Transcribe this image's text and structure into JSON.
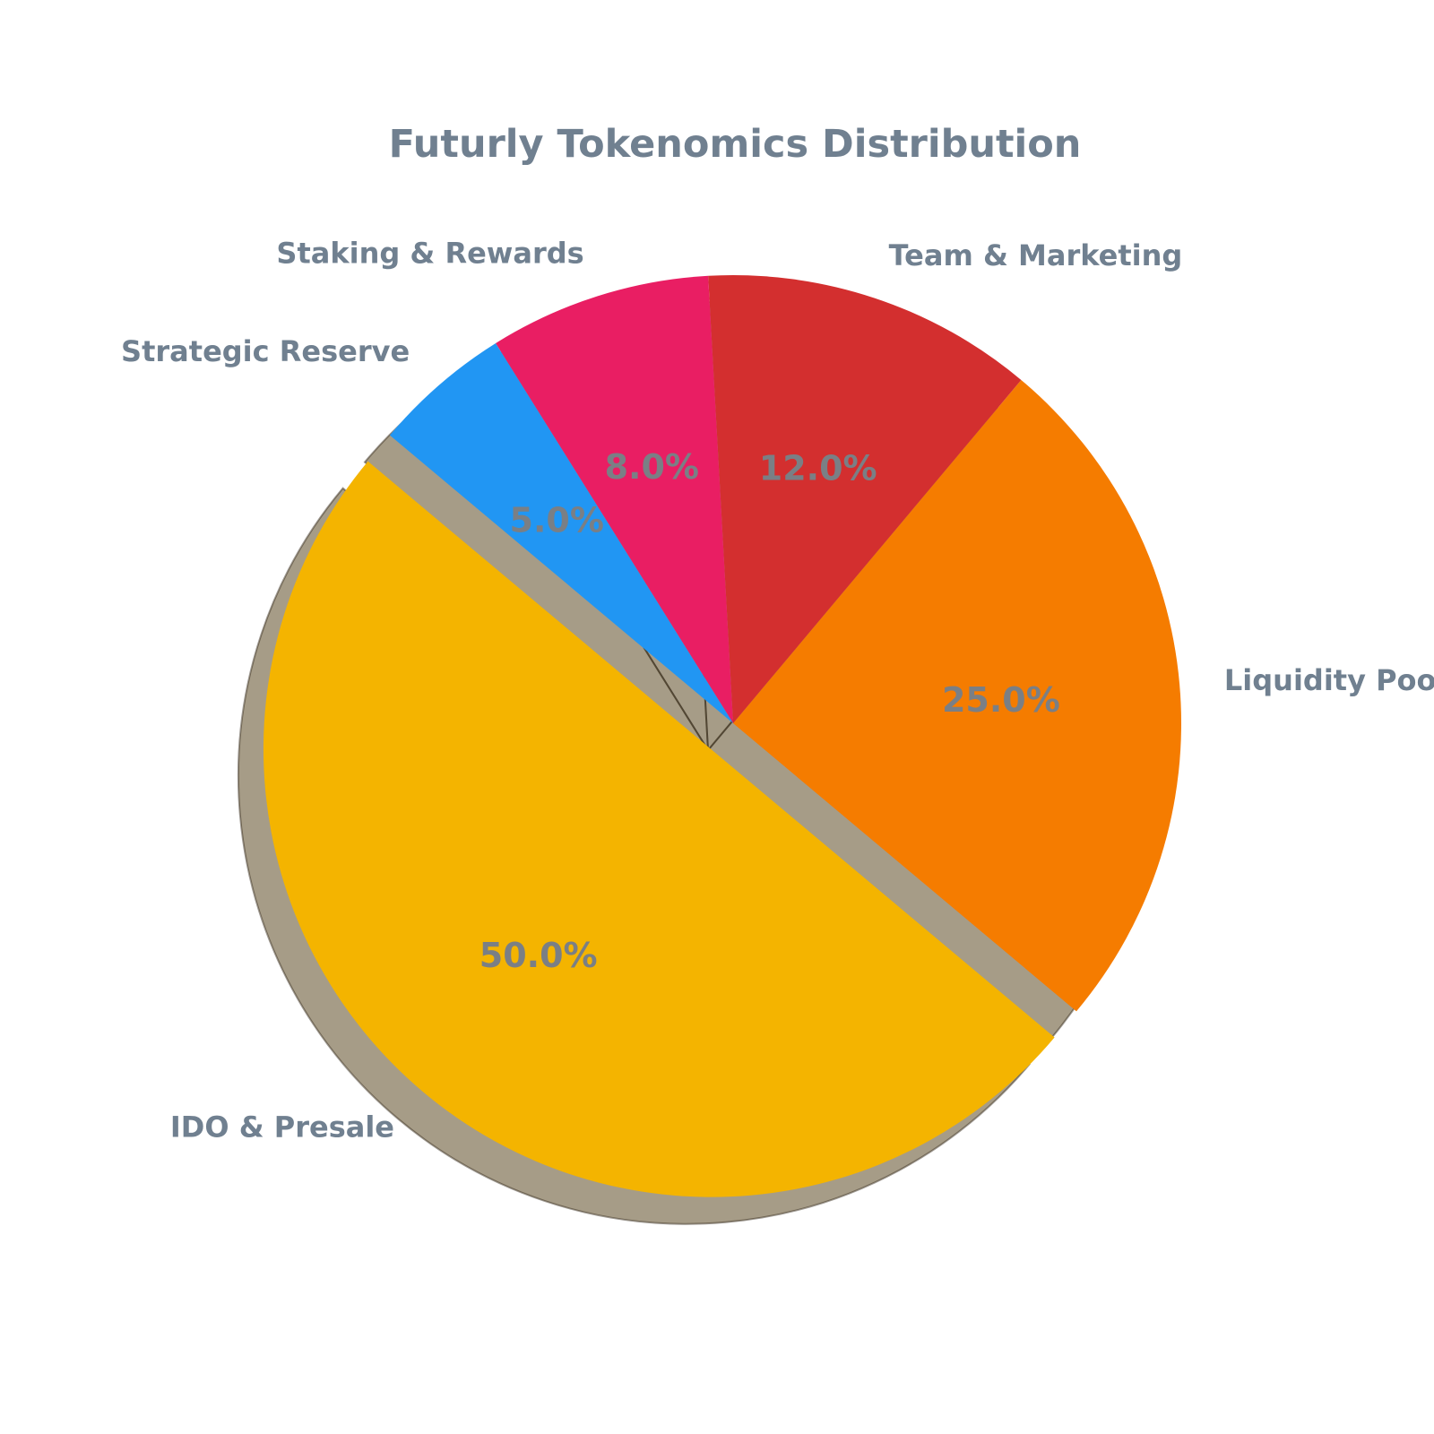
{
  "chart_data": {
    "type": "pie",
    "title": "Futurly Tokenomics Distribution",
    "categories": [
      "IDO & Presale",
      "Liquidity Pool",
      "Team & Marketing",
      "Staking & Rewards",
      "Strategic Reserve"
    ],
    "values": [
      50.0,
      25.0,
      12.0,
      8.0,
      5.0
    ],
    "value_labels": [
      "50.0%",
      "25.0%",
      "12.0%",
      "8.0%",
      "5.0%"
    ],
    "colors": [
      "#F4B400",
      "#F57C00",
      "#D32F2F",
      "#E91E63",
      "#2196F3"
    ],
    "exploded": [
      "IDO & Presale"
    ],
    "shadow": true,
    "start_angle_deg": 140,
    "direction": "counterclockwise",
    "text_color": "#708090",
    "pct_text_color": "#7a7f85"
  }
}
